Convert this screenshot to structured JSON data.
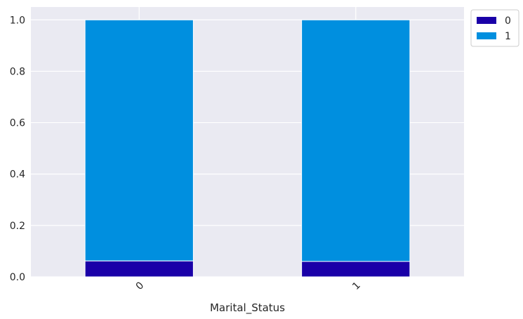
{
  "chart_data": {
    "type": "bar",
    "stacked": true,
    "title": "",
    "xlabel": "Marital_Status",
    "ylabel": "",
    "categories": [
      "0",
      "1"
    ],
    "series": [
      {
        "name": "0",
        "color": "#1a00a8",
        "values": [
          0.062,
          0.06
        ]
      },
      {
        "name": "1",
        "color": "#008fdf",
        "values": [
          0.938,
          0.94
        ]
      }
    ],
    "ylim": [
      0,
      1.05
    ],
    "yticks": [
      0.0,
      0.2,
      0.4,
      0.6,
      0.8,
      1.0
    ],
    "ytick_labels": [
      "0.0",
      "0.2",
      "0.4",
      "0.6",
      "0.8",
      "1.0"
    ],
    "grid": true,
    "legend": {
      "placement": "outside-top-right",
      "entries": [
        "0",
        "1"
      ]
    },
    "xtick_rotation": -45,
    "background": "#eaeaf2",
    "grid_color": "#ffffff"
  }
}
